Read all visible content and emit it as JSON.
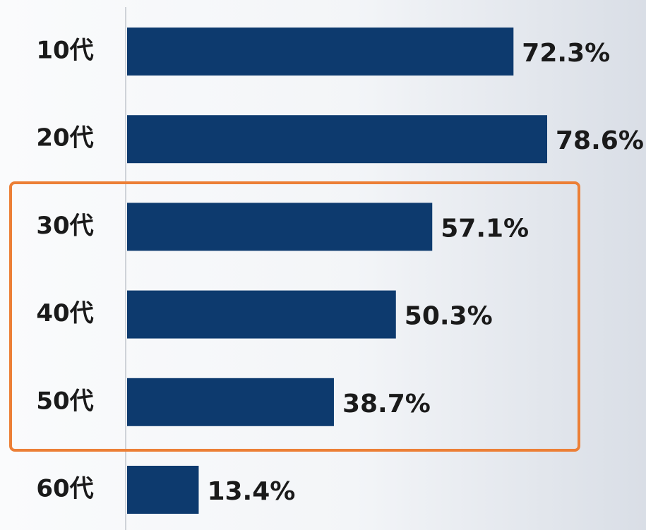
{
  "chart_data": {
    "type": "bar",
    "orientation": "horizontal",
    "categories": [
      "10代",
      "20代",
      "30代",
      "40代",
      "50代",
      "60代"
    ],
    "values": [
      72.3,
      78.6,
      57.1,
      50.3,
      38.7,
      13.4
    ],
    "value_labels": [
      "72.3%",
      "78.6%",
      "57.1%",
      "50.3%",
      "38.7%",
      "13.4%"
    ],
    "color": "#0d3a6e"
  }
}
